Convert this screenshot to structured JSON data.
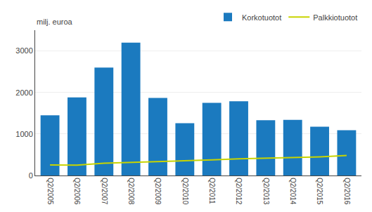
{
  "chart_data": {
    "type": "bar",
    "ylabel": "milj. euroa",
    "categories": [
      "Q2/2005",
      "Q2/2006",
      "Q2/2007",
      "Q2/2008",
      "Q2/2009",
      "Q2/2010",
      "Q2/2011",
      "Q2/2012",
      "Q2/2013",
      "Q2/2014",
      "Q2/2015",
      "Q2/2016"
    ],
    "series": [
      {
        "name": "Korkotuotot",
        "type": "bar",
        "color": "#1b7abf",
        "values": [
          1450,
          1880,
          2600,
          3200,
          1870,
          1260,
          1750,
          1790,
          1330,
          1340,
          1175,
          1090
        ]
      },
      {
        "name": "Palkkiotuotot",
        "type": "line",
        "color": "#c8d400",
        "values": [
          255,
          250,
          295,
          315,
          325,
          345,
          375,
          400,
          415,
          430,
          450,
          480
        ]
      }
    ],
    "ylim": [
      0,
      3500
    ],
    "yticks": [
      0,
      1000,
      2000,
      3000
    ],
    "grid": true,
    "legend": "upper right"
  }
}
